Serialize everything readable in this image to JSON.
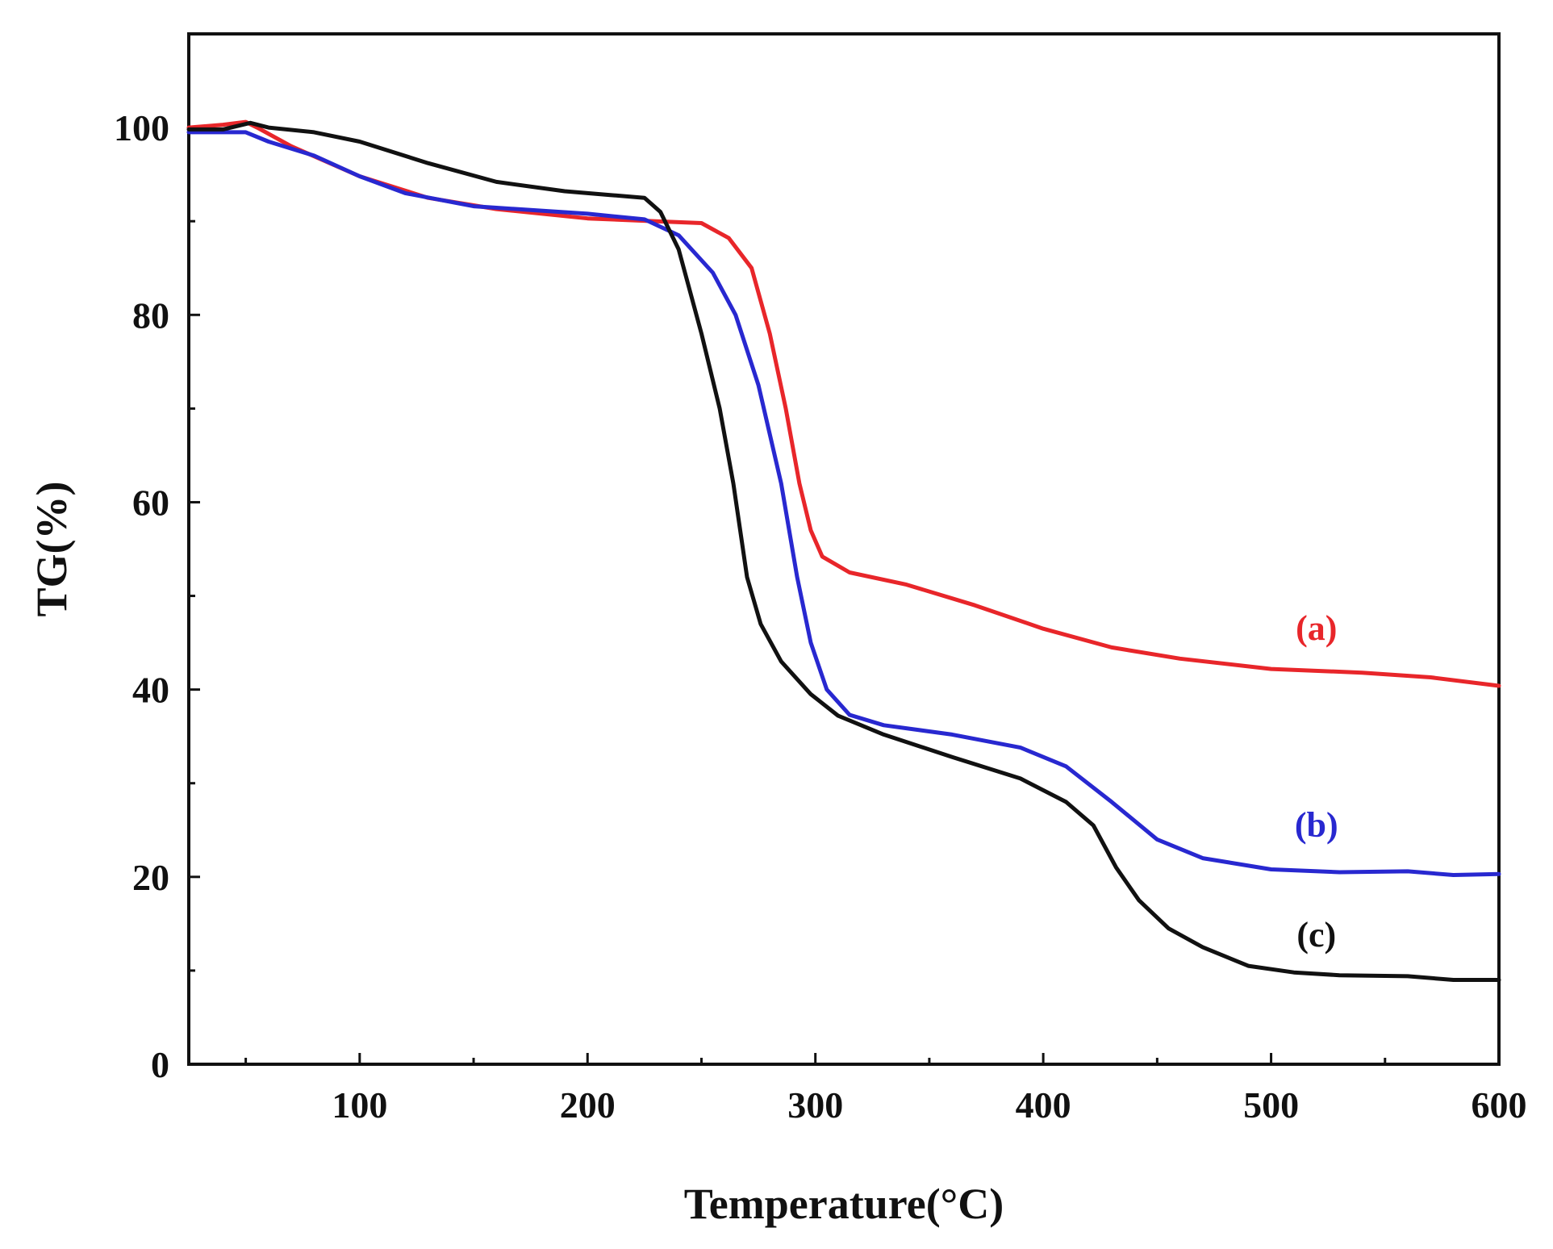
{
  "chart_data": {
    "type": "line",
    "title": "",
    "xlabel": "Temperature(°C)",
    "ylabel": "TG(%)",
    "xlim": [
      25,
      600
    ],
    "ylim": [
      0,
      110
    ],
    "x_ticks": [
      100,
      200,
      300,
      400,
      500,
      600
    ],
    "y_ticks": [
      0,
      20,
      40,
      60,
      80,
      100
    ],
    "x_tick_labels": [
      "100",
      "200",
      "300",
      "400",
      "500",
      "600"
    ],
    "y_tick_labels": [
      "0",
      "20",
      "40",
      "60",
      "80",
      "100"
    ],
    "grid": false,
    "series": [
      {
        "name": "(a)",
        "color": "#e8262a",
        "label_at": [
          510,
          46.5
        ],
        "points": [
          [
            25,
            100
          ],
          [
            40,
            100.3
          ],
          [
            50,
            100.6
          ],
          [
            55,
            100
          ],
          [
            70,
            98
          ],
          [
            100,
            94.8
          ],
          [
            130,
            92.5
          ],
          [
            160,
            91.3
          ],
          [
            200,
            90.3
          ],
          [
            230,
            90
          ],
          [
            250,
            89.8
          ],
          [
            262,
            88.2
          ],
          [
            272,
            85
          ],
          [
            280,
            78
          ],
          [
            287,
            70
          ],
          [
            293,
            62
          ],
          [
            298,
            57
          ],
          [
            303,
            54.2
          ],
          [
            315,
            52.5
          ],
          [
            340,
            51.2
          ],
          [
            370,
            49
          ],
          [
            400,
            46.5
          ],
          [
            430,
            44.5
          ],
          [
            460,
            43.3
          ],
          [
            500,
            42.2
          ],
          [
            540,
            41.8
          ],
          [
            570,
            41.3
          ],
          [
            600,
            40.4
          ]
        ]
      },
      {
        "name": "(b)",
        "color": "#2828d0",
        "label_at": [
          510,
          25.5
        ],
        "points": [
          [
            25,
            99.5
          ],
          [
            50,
            99.5
          ],
          [
            60,
            98.5
          ],
          [
            80,
            97
          ],
          [
            100,
            94.8
          ],
          [
            120,
            93
          ],
          [
            150,
            91.6
          ],
          [
            200,
            90.8
          ],
          [
            225,
            90.2
          ],
          [
            240,
            88.5
          ],
          [
            255,
            84.5
          ],
          [
            265,
            80
          ],
          [
            275,
            72.5
          ],
          [
            285,
            62
          ],
          [
            292,
            52
          ],
          [
            298,
            45
          ],
          [
            305,
            40
          ],
          [
            315,
            37.3
          ],
          [
            330,
            36.2
          ],
          [
            360,
            35.2
          ],
          [
            390,
            33.8
          ],
          [
            410,
            31.8
          ],
          [
            430,
            28
          ],
          [
            450,
            24
          ],
          [
            470,
            22
          ],
          [
            500,
            20.8
          ],
          [
            530,
            20.5
          ],
          [
            560,
            20.6
          ],
          [
            580,
            20.2
          ],
          [
            600,
            20.3
          ]
        ]
      },
      {
        "name": "(c)",
        "color": "#111111",
        "label_at": [
          510,
          13.8
        ],
        "points": [
          [
            25,
            99.8
          ],
          [
            40,
            99.8
          ],
          [
            52,
            100.5
          ],
          [
            60,
            100
          ],
          [
            80,
            99.5
          ],
          [
            100,
            98.5
          ],
          [
            130,
            96.2
          ],
          [
            160,
            94.2
          ],
          [
            190,
            93.2
          ],
          [
            210,
            92.8
          ],
          [
            225,
            92.5
          ],
          [
            232,
            91
          ],
          [
            240,
            87
          ],
          [
            250,
            78
          ],
          [
            258,
            70
          ],
          [
            264,
            62
          ],
          [
            270,
            52
          ],
          [
            276,
            47
          ],
          [
            285,
            43
          ],
          [
            298,
            39.5
          ],
          [
            310,
            37.2
          ],
          [
            330,
            35.2
          ],
          [
            360,
            32.8
          ],
          [
            390,
            30.5
          ],
          [
            410,
            28
          ],
          [
            422,
            25.5
          ],
          [
            432,
            21
          ],
          [
            442,
            17.5
          ],
          [
            455,
            14.5
          ],
          [
            470,
            12.5
          ],
          [
            490,
            10.5
          ],
          [
            510,
            9.8
          ],
          [
            530,
            9.5
          ],
          [
            560,
            9.4
          ],
          [
            580,
            9.0
          ],
          [
            600,
            9.0
          ]
        ]
      }
    ]
  }
}
